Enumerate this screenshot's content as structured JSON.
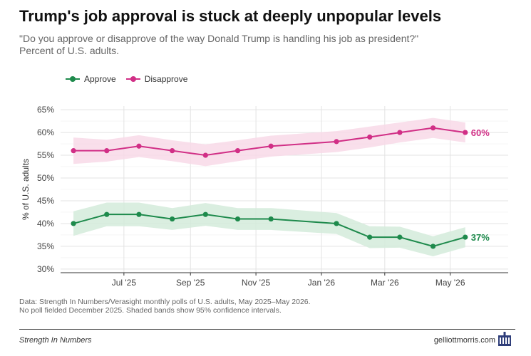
{
  "title": "Trump's job approval is stuck at deeply unpopular levels",
  "subtitle": "\"Do you approve or disapprove of the way Donald Trump is handling his job as president?\" Percent of U.S. adults.",
  "source_line1": "Data: Strength In Numbers/Verasight monthly polls of U.S. adults, May 2025–May 2026.",
  "source_line2": "No poll fielded December 2025. Shaded bands show 95% confidence intervals.",
  "footer": {
    "brand": "Strength In Numbers",
    "site": "gelliottmorris.com",
    "logo_icon": "building-logo-icon"
  },
  "colors": {
    "approve": "#1e8a4c",
    "approve_band": "#d3ebdb",
    "disapprove": "#d12f86",
    "disapprove_band": "#f8d9e8",
    "grid": "#e3e3e3"
  },
  "chart_data": {
    "type": "line",
    "title": "Trump's job approval is stuck at deeply unpopular levels",
    "xlabel": "",
    "ylabel": "% of U.S. adults",
    "ylim": [
      29.2,
      65.8
    ],
    "yticks": [
      30,
      35,
      40,
      45,
      50,
      55,
      60,
      65
    ],
    "ytick_labels": [
      "30%",
      "35%",
      "40%",
      "45%",
      "50%",
      "55%",
      "60%",
      "65%"
    ],
    "xlim": [
      "2025-05-03",
      "2026-06-24"
    ],
    "xticks": [
      "2025-07-01",
      "2025-09-01",
      "2025-11-01",
      "2026-01-01",
      "2026-03-01",
      "2026-05-01"
    ],
    "xtick_labels": [
      "Jul '25",
      "Sep '25",
      "Nov '25",
      "Jan '26",
      "Mar '26",
      "May '26"
    ],
    "x": [
      "2025-05-15",
      "2025-06-15",
      "2025-07-15",
      "2025-08-15",
      "2025-09-15",
      "2025-10-15",
      "2025-11-15",
      "2026-01-15",
      "2026-02-15",
      "2026-03-15",
      "2026-04-15",
      "2026-05-15"
    ],
    "grid": true,
    "legend": "top-left",
    "series": [
      {
        "name": "Approve",
        "color": "#1e8a4c",
        "values": [
          40,
          42,
          42,
          41,
          42,
          41,
          41,
          40,
          37,
          37,
          35,
          37
        ],
        "lower": [
          37.3,
          39.4,
          39.4,
          38.6,
          39.5,
          38.6,
          38.6,
          37.7,
          34.6,
          34.7,
          32.8,
          34.8
        ],
        "upper": [
          42.7,
          44.6,
          44.6,
          43.4,
          44.5,
          43.4,
          43.4,
          42.3,
          39.4,
          39.3,
          37.2,
          39.2
        ],
        "end_label": "37%"
      },
      {
        "name": "Disapprove",
        "color": "#d12f86",
        "values": [
          56,
          56,
          57,
          56,
          55,
          56,
          57,
          58,
          59,
          60,
          61,
          60
        ],
        "lower": [
          53.1,
          53.6,
          54.6,
          53.7,
          52.6,
          53.7,
          54.7,
          55.7,
          56.7,
          57.8,
          58.8,
          57.8
        ],
        "upper": [
          58.9,
          58.4,
          59.4,
          58.3,
          57.4,
          58.3,
          59.3,
          60.3,
          61.3,
          62.2,
          63.2,
          62.2
        ],
        "end_label": "60%"
      }
    ]
  }
}
